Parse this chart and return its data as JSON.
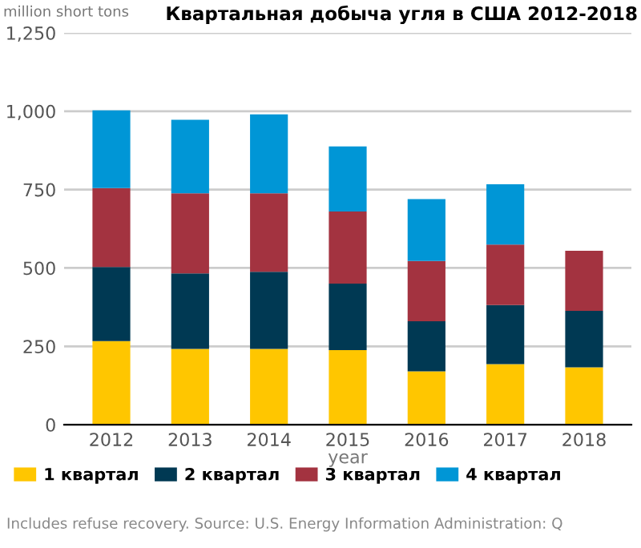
{
  "chart_data": {
    "type": "bar",
    "title": "Квартальная добыча угля в США 2012-2018",
    "ylabel": "million short tons",
    "xlabel": "year",
    "categories": [
      "2012",
      "2013",
      "2014",
      "2015",
      "2016",
      "2017",
      "2018"
    ],
    "stacked": true,
    "series": [
      {
        "name": "1 квартал",
        "color": "#ffc600",
        "values": [
          267,
          242,
          242,
          238,
          170,
          193,
          183
        ]
      },
      {
        "name": "2 квартал",
        "color": "#003953",
        "values": [
          236,
          241,
          246,
          212,
          160,
          189,
          180
        ]
      },
      {
        "name": "3 квартал",
        "color": "#a33340",
        "values": [
          252,
          255,
          250,
          230,
          192,
          193,
          192
        ]
      },
      {
        "name": "4 квартал",
        "color": "#0096d6",
        "values": [
          248,
          235,
          252,
          208,
          198,
          192,
          null
        ]
      }
    ],
    "ylim": [
      0,
      1250
    ],
    "yticks": [
      0,
      250,
      500,
      750,
      {
        "value": 1000,
        "label": "1,000"
      },
      {
        "value": 1250,
        "label": "1,250"
      }
    ],
    "grid": "y",
    "legend": "bottom",
    "annotations": [
      "Includes refuse recovery. Source: U.S. Energy Information Administration: Q"
    ]
  }
}
